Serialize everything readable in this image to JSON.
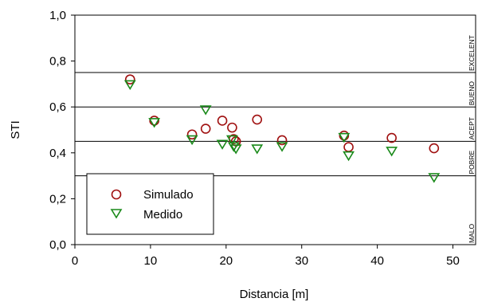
{
  "chart_data": {
    "type": "scatter",
    "title": "",
    "xlabel": "Distancia [m]",
    "ylabel": "STI",
    "xlim": [
      0,
      53
    ],
    "ylim": [
      0,
      1
    ],
    "xticks": [
      0,
      10,
      20,
      30,
      40,
      50
    ],
    "xtick_labels": [
      "0",
      "10",
      "20",
      "30",
      "40",
      "50"
    ],
    "yticks": [
      0,
      0.2,
      0.4,
      0.6,
      0.8,
      1.0
    ],
    "ytick_labels": [
      "0,0",
      "0,2",
      "0,4",
      "0,6",
      "0,8",
      "1,0"
    ],
    "grid": false,
    "reference_lines": [
      0.3,
      0.45,
      0.6,
      0.75
    ],
    "bands": [
      {
        "label": "MALO",
        "from": 0.0,
        "to": 0.3
      },
      {
        "label": "POBRE",
        "from": 0.3,
        "to": 0.45
      },
      {
        "label": "ACEPT",
        "from": 0.45,
        "to": 0.6
      },
      {
        "label": "BUENO",
        "from": 0.6,
        "to": 0.75
      },
      {
        "label": "EXCELENT",
        "from": 0.75,
        "to": 1.0
      }
    ],
    "legend_position": "bottom-left",
    "series": [
      {
        "name": "Simulado",
        "marker": "circle",
        "color": "#a01010",
        "points": [
          [
            7.3,
            0.72
          ],
          [
            10.5,
            0.54
          ],
          [
            15.5,
            0.48
          ],
          [
            17.3,
            0.505
          ],
          [
            19.5,
            0.54
          ],
          [
            20.8,
            0.51
          ],
          [
            21.0,
            0.46
          ],
          [
            21.3,
            0.45
          ],
          [
            24.1,
            0.545
          ],
          [
            27.4,
            0.455
          ],
          [
            35.6,
            0.475
          ],
          [
            36.2,
            0.425
          ],
          [
            41.9,
            0.465
          ],
          [
            47.5,
            0.42
          ]
        ]
      },
      {
        "name": "Medido",
        "marker": "triangle-down",
        "color": "#1a8a1a",
        "points": [
          [
            7.3,
            0.7
          ],
          [
            10.5,
            0.535
          ],
          [
            15.5,
            0.46
          ],
          [
            17.3,
            0.59
          ],
          [
            19.5,
            0.44
          ],
          [
            20.8,
            0.46
          ],
          [
            21.0,
            0.43
          ],
          [
            21.3,
            0.42
          ],
          [
            24.1,
            0.42
          ],
          [
            27.4,
            0.43
          ],
          [
            35.6,
            0.47
          ],
          [
            36.2,
            0.39
          ],
          [
            41.9,
            0.41
          ],
          [
            47.5,
            0.295
          ]
        ]
      }
    ]
  }
}
